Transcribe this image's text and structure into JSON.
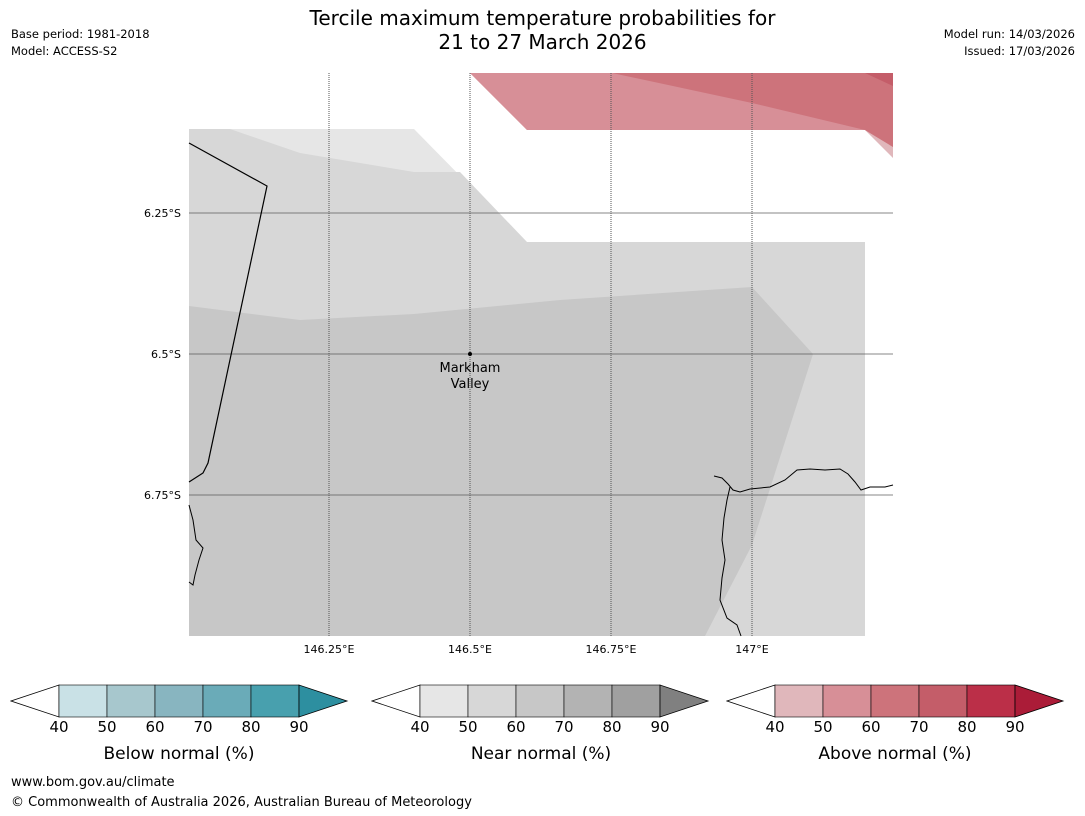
{
  "header": {
    "title_line1": "Tercile maximum temperature probabilities for",
    "title_line2": "21 to 27 March 2026",
    "base_period": "Base period: 1981-2018",
    "model": "Model: ACCESS-S2",
    "model_run": "Model run: 14/03/2026",
    "issued": "Issued: 17/03/2026"
  },
  "map": {
    "lat_labels": [
      "6.25°S",
      "6.5°S",
      "6.75°S"
    ],
    "lon_labels": [
      "146.25°E",
      "146.5°E",
      "146.75°E",
      "147°E"
    ],
    "place": {
      "name_line1": "Markham",
      "name_line2": "Valley"
    }
  },
  "legends": [
    {
      "label": "Below normal (%)",
      "ticks": [
        "40",
        "50",
        "60",
        "70",
        "80",
        "90"
      ],
      "colors": [
        "#c9e1e6",
        "#a7c7cd",
        "#88b5c0",
        "#6aabb8",
        "#48a0ae",
        "#2d8fa0"
      ]
    },
    {
      "label": "Near normal (%)",
      "ticks": [
        "40",
        "50",
        "60",
        "70",
        "80",
        "90"
      ],
      "colors": [
        "#e6e6e6",
        "#d7d7d7",
        "#c7c7c7",
        "#b3b3b3",
        "#a0a0a0",
        "#808080"
      ]
    },
    {
      "label": "Above normal (%)",
      "ticks": [
        "40",
        "50",
        "60",
        "70",
        "80",
        "90"
      ],
      "colors": [
        "#e0b7bb",
        "#d78f97",
        "#cd737b",
        "#c45d69",
        "#bb2f48",
        "#ab1c38"
      ]
    }
  ],
  "footer": {
    "url": "www.bom.gov.au/climate",
    "copyright": "© Commonwealth of Australia 2026, Australian Bureau of Meteorology"
  }
}
